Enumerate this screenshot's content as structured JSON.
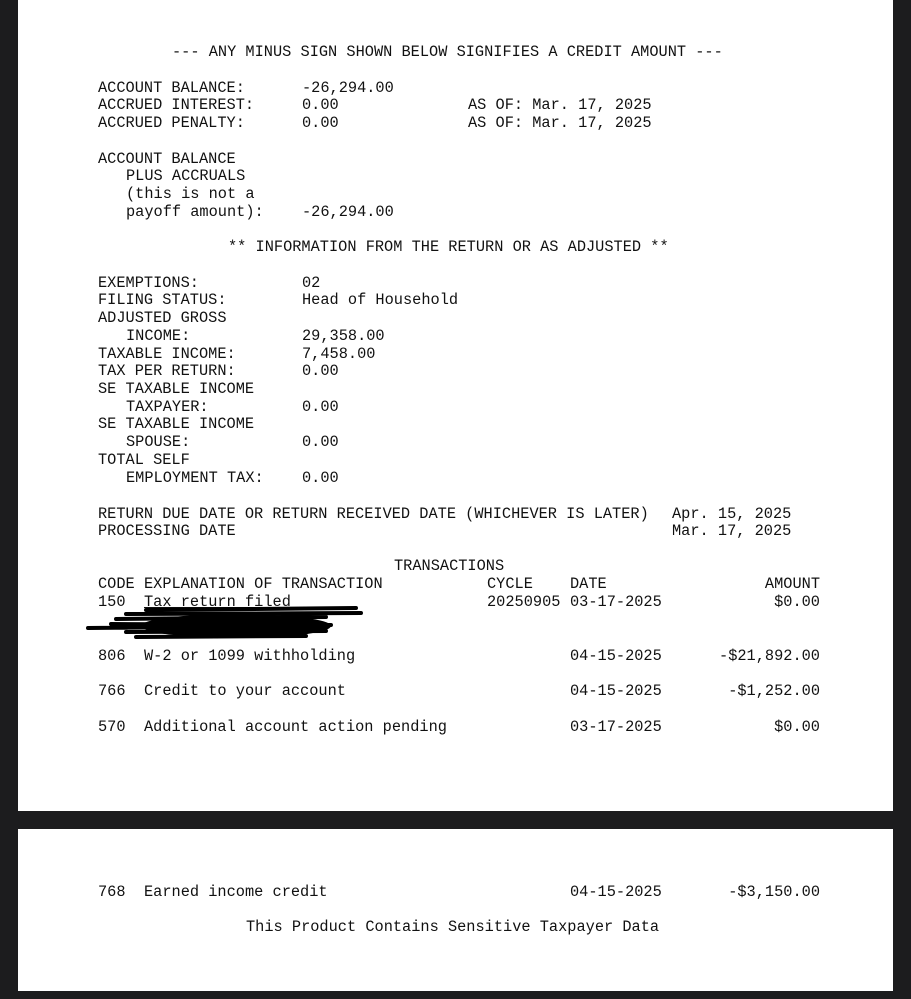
{
  "notice": "--- ANY MINUS SIGN SHOWN BELOW SIGNIFIES A CREDIT AMOUNT ---",
  "account": {
    "balance_label": "ACCOUNT BALANCE:",
    "balance": "-26,294.00",
    "interest_label": "ACCRUED INTEREST:",
    "interest": "0.00",
    "interest_asof": "AS OF: Mar. 17, 2025",
    "penalty_label": "ACCRUED PENALTY:",
    "penalty": "0.00",
    "penalty_asof": "AS OF: Mar. 17, 2025",
    "plus_label_1": "ACCOUNT BALANCE",
    "plus_label_2": "PLUS ACCRUALS",
    "plus_label_3": "(this is not a",
    "plus_label_4": "payoff amount):",
    "plus_accruals": "-26,294.00"
  },
  "return_info": {
    "heading": "** INFORMATION FROM THE RETURN OR AS ADJUSTED **",
    "exemptions_label": "EXEMPTIONS:",
    "exemptions": "02",
    "filing_status_label": "FILING STATUS:",
    "filing_status": "Head of Household",
    "agi_label_1": "ADJUSTED GROSS",
    "agi_label_2": "INCOME:",
    "agi": "29,358.00",
    "taxable_income_label": "TAXABLE INCOME:",
    "taxable_income": "7,458.00",
    "tax_per_return_label": "TAX PER RETURN:",
    "tax_per_return": "0.00",
    "se_taxpayer_label_1": "SE TAXABLE INCOME",
    "se_taxpayer_label_2": "TAXPAYER:",
    "se_taxpayer": "0.00",
    "se_spouse_label_1": "SE TAXABLE INCOME",
    "se_spouse_label_2": "SPOUSE:",
    "se_spouse": "0.00",
    "se_tax_label_1": "TOTAL SELF",
    "se_tax_label_2": "EMPLOYMENT TAX:",
    "se_tax": "0.00",
    "due_date_label": "RETURN DUE DATE OR RETURN RECEIVED DATE (WHICHEVER IS LATER)",
    "due_date": "Apr. 15, 2025",
    "processing_label": "PROCESSING DATE",
    "processing_date": "Mar. 17, 2025"
  },
  "transactions": {
    "heading": "TRANSACTIONS",
    "columns": {
      "code": "CODE",
      "explanation": "EXPLANATION OF TRANSACTION",
      "cycle": "CYCLE",
      "date": "DATE",
      "amount": "AMOUNT"
    },
    "rows": [
      {
        "code": "150",
        "explanation": "Tax return filed",
        "cycle": "20250905",
        "date": "03-17-2025",
        "amount": "$0.00"
      },
      {
        "code": "806",
        "explanation": "W-2 or 1099 withholding",
        "cycle": "",
        "date": "04-15-2025",
        "amount": "-$21,892.00"
      },
      {
        "code": "766",
        "explanation": "Credit to your account",
        "cycle": "",
        "date": "04-15-2025",
        "amount": "-$1,252.00"
      },
      {
        "code": "570",
        "explanation": "Additional account action pending",
        "cycle": "",
        "date": "03-17-2025",
        "amount": "$0.00"
      },
      {
        "code": "768",
        "explanation": "Earned income credit",
        "cycle": "",
        "date": "04-15-2025",
        "amount": "-$3,150.00"
      }
    ]
  },
  "footer": "This Product Contains Sensitive Taxpayer Data"
}
